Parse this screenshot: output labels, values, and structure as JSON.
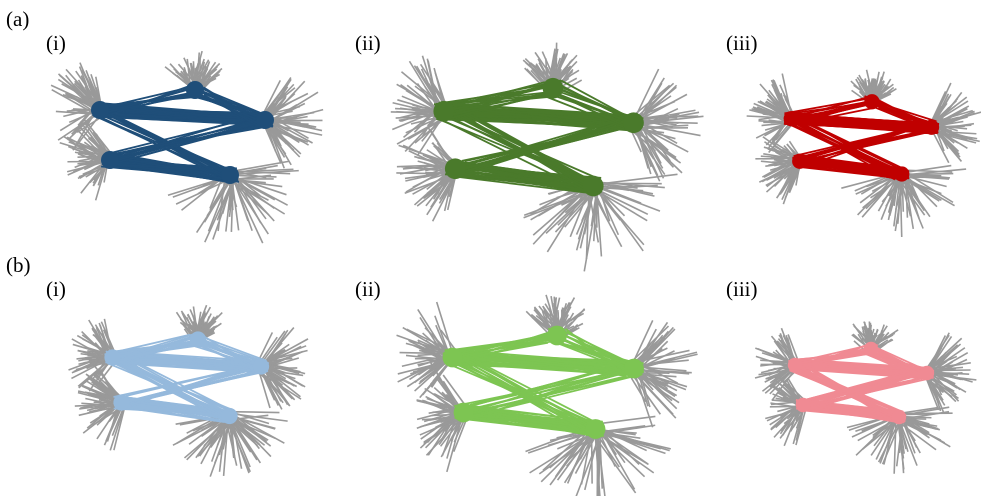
{
  "figure": {
    "rows": [
      {
        "label": "(a)",
        "panels": [
          {
            "label": "(i)"
          },
          {
            "label": "(ii)"
          },
          {
            "label": "(iii)"
          }
        ]
      },
      {
        "label": "(b)",
        "panels": [
          {
            "label": "(i)"
          },
          {
            "label": "(ii)"
          },
          {
            "label": "(iii)"
          }
        ]
      }
    ]
  }
}
